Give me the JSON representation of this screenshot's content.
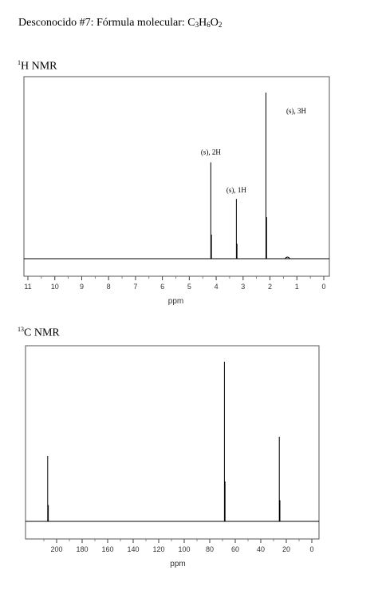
{
  "title": {
    "prefix": "Desconocido #7: Fórmula molecular: C",
    "c_count": "3",
    "h_label": "H",
    "h_count": "6",
    "o_label": "O",
    "o_count": "2"
  },
  "chart_data": [
    {
      "type": "line",
      "title": "H NMR",
      "title_superscript": "1",
      "xlabel": "ppm",
      "x_reversed": true,
      "xlim": [
        11,
        0
      ],
      "tick_labels": [
        "11",
        "10",
        "9",
        "8",
        "7",
        "6",
        "5",
        "4",
        "3",
        "2",
        "1",
        "0"
      ],
      "peaks": [
        {
          "ppm": 4.2,
          "height": 0.58,
          "label": "(s), 2H"
        },
        {
          "ppm": 3.25,
          "height": 0.36,
          "label": "(s), 1H"
        },
        {
          "ppm": 2.15,
          "height": 1.0,
          "label": "(s), 3H"
        },
        {
          "ppm": 1.35,
          "height": 0.015,
          "label": ""
        }
      ]
    },
    {
      "type": "line",
      "title": "C NMR",
      "title_superscript": "13",
      "xlabel": "ppm",
      "x_reversed": true,
      "xlim": [
        210,
        0
      ],
      "tick_labels": [
        "200",
        "180",
        "160",
        "140",
        "120",
        "100",
        "80",
        "60",
        "40",
        "20",
        "0"
      ],
      "peaks": [
        {
          "ppm": 207,
          "height": 0.41
        },
        {
          "ppm": 68.5,
          "height": 1.0
        },
        {
          "ppm": 25.5,
          "height": 0.53
        }
      ]
    }
  ]
}
